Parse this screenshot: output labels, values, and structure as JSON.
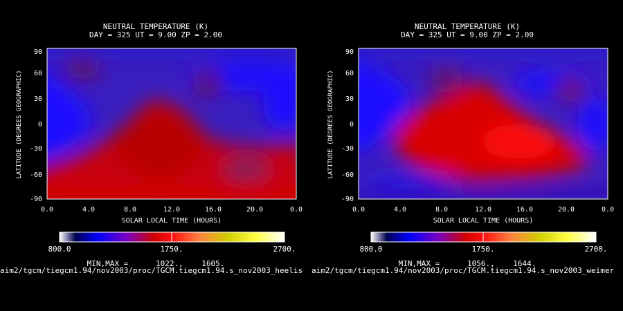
{
  "chart_data": [
    {
      "type": "heatmap",
      "title": "NEUTRAL TEMPERATURE (K)",
      "subtitle": "DAY = 325   UT =  9.00   ZP =    2.00",
      "xlabel": "SOLAR LOCAL TIME (HOURS)",
      "ylabel": "LATITUDE (DEGREES GEOGRAPHIC)",
      "xlim": [
        0,
        24
      ],
      "ylim": [
        -90,
        90
      ],
      "xticks": [
        "0.0",
        "4.0",
        "8.0",
        "12.0",
        "16.0",
        "20.0",
        "0.0"
      ],
      "yticks": [
        "90",
        "60",
        "30",
        "0",
        "-30",
        "-60",
        "-90"
      ],
      "colorbar": {
        "min_label": "800.0",
        "mid_label": "1750.",
        "max_label": "2700."
      },
      "min_label": "MIN,MAX =",
      "min_value": "1022.,",
      "max_value": "1605.",
      "file_path": "aim2/tgcm/tiegcm1.94/nov2003/proc/TGCM.tiegcm1.94.s_nov2003_heelis"
    },
    {
      "type": "heatmap",
      "title": "NEUTRAL TEMPERATURE (K)",
      "subtitle": "DAY = 325   UT =  9.00   ZP =    2.00",
      "xlabel": "SOLAR LOCAL TIME (HOURS)",
      "ylabel": "LATITUDE (DEGREES GEOGRAPHIC)",
      "xlim": [
        0,
        24
      ],
      "ylim": [
        -90,
        90
      ],
      "xticks": [
        "0.0",
        "4.0",
        "8.0",
        "12.0",
        "16.0",
        "20.0",
        "0.0"
      ],
      "yticks": [
        "90",
        "60",
        "30",
        "0",
        "-30",
        "-60",
        "-90"
      ],
      "colorbar": {
        "min_label": "800.0",
        "mid_label": "1750.",
        "max_label": "2700."
      },
      "min_label": "MIN,MAX =",
      "min_value": "1056.,",
      "max_value": "1644.",
      "file_path": "aim2/tgcm/tiegcm1.94/nov2003/proc/TGCM.tiegcm1.94.s_nov2003_weimer"
    }
  ]
}
